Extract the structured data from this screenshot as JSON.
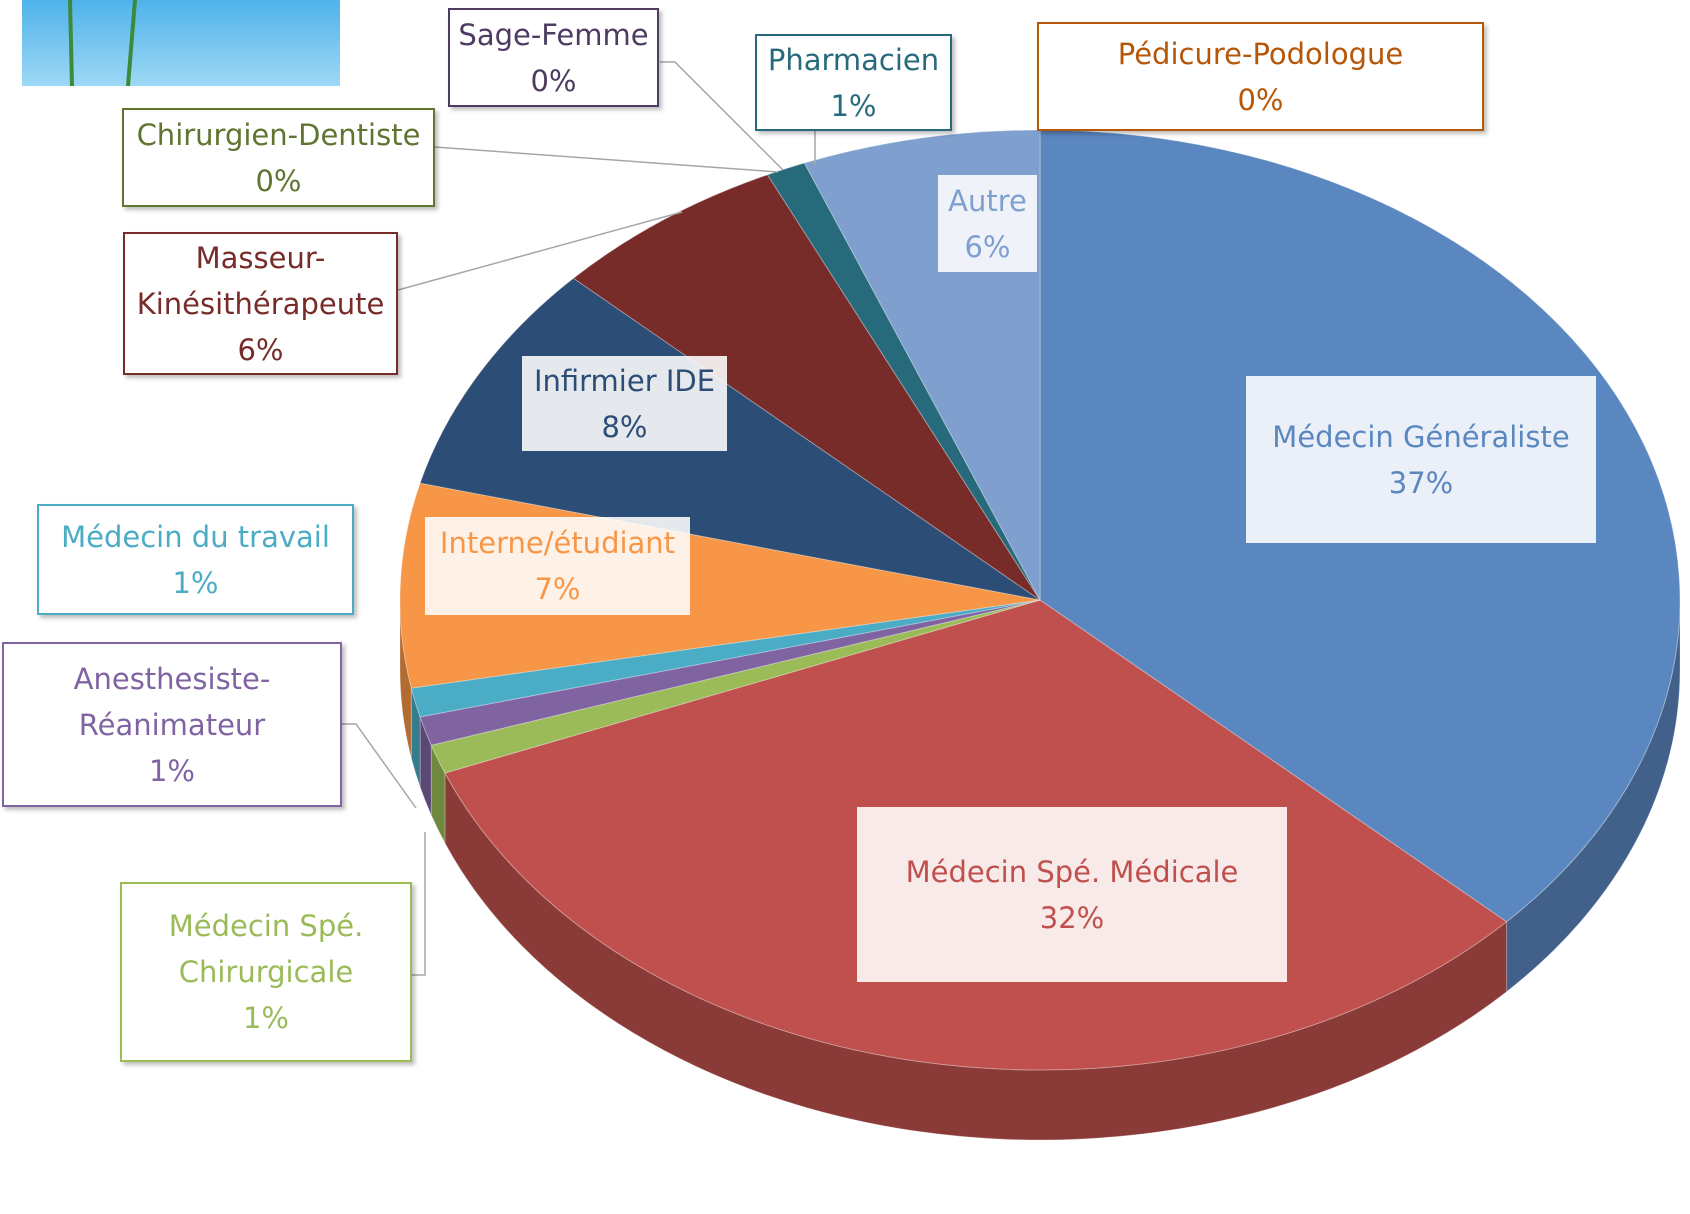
{
  "chart_data": {
    "type": "pie",
    "categories": [
      "Médecin Généraliste",
      "Médecin Spé. Médicale",
      "Médecin Spé. Chirurgicale",
      "Anesthesiste-Réanimateur",
      "Médecin du travail",
      "Interne/étudiant",
      "Infirmier IDE",
      "Masseur-Kinésithérapeute",
      "Chirurgien-Dentiste",
      "Sage-Femme",
      "Pharmacien",
      "Pédicure-Podologue",
      "Autre"
    ],
    "values": [
      37,
      32,
      1,
      1,
      1,
      7,
      8,
      6,
      0,
      0,
      1,
      0,
      6
    ],
    "value_labels": [
      "37%",
      "32%",
      "1%",
      "1%",
      "1%",
      "7%",
      "8%",
      "6%",
      "0%",
      "0%",
      "1%",
      "0%",
      "6%"
    ],
    "colors": [
      "#5b87c0",
      "#c0504d",
      "#9bbb59",
      "#8064a2",
      "#4bacc6",
      "#f79646",
      "#2c4d75",
      "#772c2a",
      "#5f7530",
      "#4d3b62",
      "#276a7c",
      "#b65708",
      "#7f9fcf"
    ]
  }
}
